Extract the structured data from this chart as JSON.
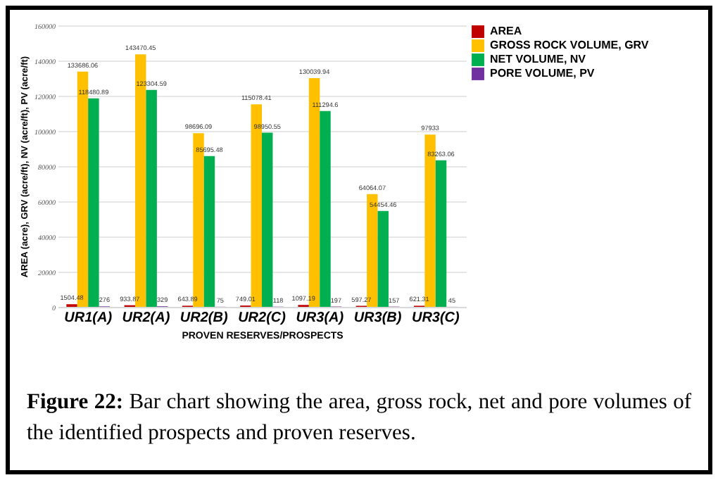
{
  "chart_data": {
    "type": "bar",
    "xlabel": "PROVEN RESERVES/PROSPECTS",
    "ylabel": "AREA (acre), GRV (acre/ft), NV (acre/ft), PV (acre/ft)",
    "categories": [
      "UR1(A)",
      "UR2(A)",
      "UR2(B)",
      "UR2(C)",
      "UR3(A)",
      "UR3(B)",
      "UR3(C)"
    ],
    "series": [
      {
        "name": "AREA",
        "color": "#c00000",
        "values": [
          1504.48,
          933.87,
          643.89,
          749.01,
          1097.19,
          597.27,
          621.31
        ],
        "value_labels": [
          "1504.48",
          "933.87",
          "643.89",
          "749.01",
          "1097.19",
          "597.27",
          "621.31"
        ]
      },
      {
        "name": "GROSS ROCK VOLUME, GRV",
        "color": "#ffc000",
        "values": [
          133686.06,
          143470.45,
          98696.09,
          115078.41,
          130039.94,
          64064.07,
          97933
        ],
        "value_labels": [
          "133686.06",
          "143470.45",
          "98696.09",
          "115078.41",
          "130039.94",
          "64064.07",
          "97933"
        ]
      },
      {
        "name": "NET VOLUME, NV",
        "color": "#00b050",
        "values": [
          118480.89,
          123304.59,
          85695.48,
          98950.55,
          111294.6,
          54454.46,
          83263.06
        ],
        "value_labels": [
          "118480.89",
          "123304.59",
          "85695.48",
          "98950.55",
          "111294.6",
          "54454.46",
          "83263.06"
        ]
      },
      {
        "name": "PORE VOLUME, PV",
        "color": "#7030a0",
        "values": [
          276,
          329,
          75,
          118,
          197,
          157,
          45
        ],
        "value_labels": [
          "276",
          "329",
          "75",
          "118",
          "197",
          "157",
          "45"
        ]
      }
    ],
    "ylim": [
      0,
      160000
    ],
    "yticks": [
      0,
      20000,
      40000,
      60000,
      80000,
      100000,
      120000,
      140000,
      160000
    ],
    "grid": "y",
    "legend": "right",
    "annotations": [
      "Figure 22: Bar chart showing the area, gross rock, net and pore volumes of the identified prospects and proven reserves."
    ]
  }
}
